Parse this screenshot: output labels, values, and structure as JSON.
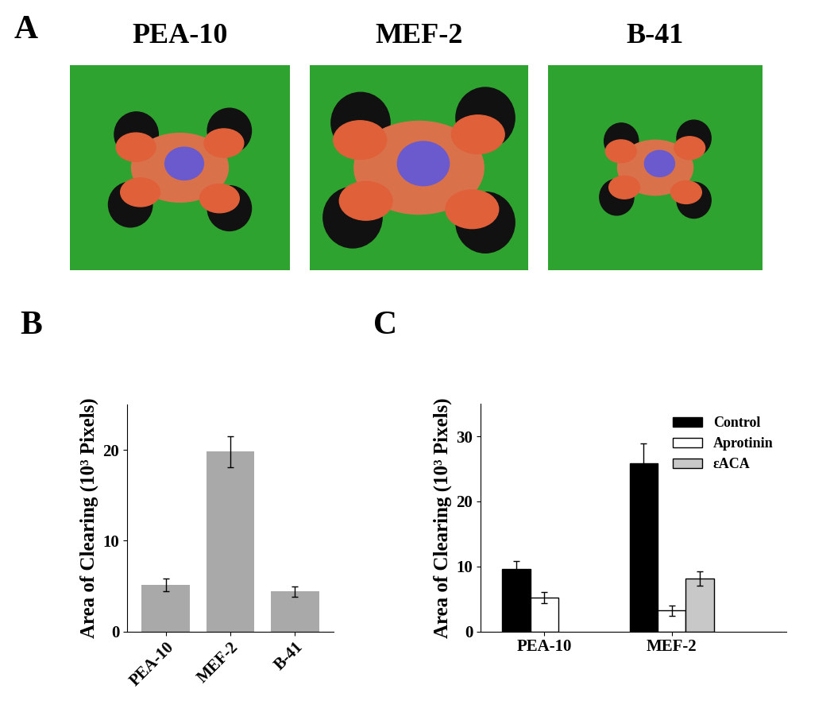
{
  "panel_a": {
    "label": "A",
    "images": [
      "PEA-10",
      "MEF-2",
      "B-41"
    ]
  },
  "chart_data": [
    {
      "type": "bar",
      "title": "B",
      "categories": [
        "PEA-10",
        "MEF-2",
        "B-41"
      ],
      "values": [
        5.1,
        19.8,
        4.4
      ],
      "errors": [
        0.7,
        1.7,
        0.6
      ],
      "color": "#a9a9a9",
      "y_label": "Area of Clearing (10³ Pixels)",
      "ylim": [
        0,
        25
      ],
      "yticks": [
        0,
        10,
        20
      ]
    },
    {
      "type": "bar",
      "title": "C",
      "categories": [
        "PEA-10",
        "MEF-2"
      ],
      "series": [
        {
          "name": "Control",
          "color": "#000000",
          "values": [
            9.6,
            25.8
          ],
          "errors": [
            1.2,
            3.1
          ]
        },
        {
          "name": "Aprotinin",
          "color": "#ffffff",
          "values": [
            5.2,
            3.2
          ],
          "errors": [
            0.9,
            0.8
          ]
        },
        {
          "name": "εACA",
          "color": "#c8c8c8",
          "values": [
            null,
            8.2
          ],
          "errors": [
            null,
            1.1
          ]
        }
      ],
      "y_label": "Area of Clearing (10³ Pixels)",
      "ylim": [
        0,
        35
      ],
      "yticks": [
        0,
        10,
        20,
        30
      ],
      "legend": "upper right"
    }
  ]
}
